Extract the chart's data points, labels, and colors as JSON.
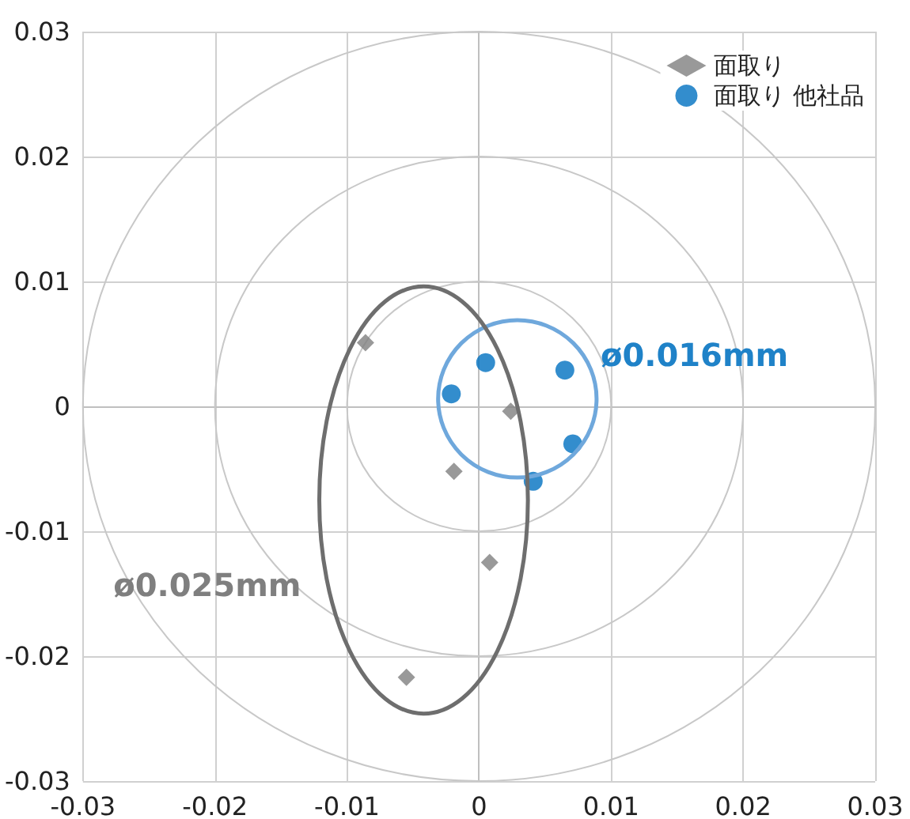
{
  "chart_data": {
    "type": "scatter",
    "series": [
      {
        "name": "面取り",
        "marker": "diamond",
        "color": "#808080",
        "x": [
          -0.0086,
          0.0024,
          -0.0019,
          0.0008,
          -0.0055
        ],
        "values": [
          0.0051,
          -0.0004,
          -0.0052,
          -0.0125,
          -0.0217
        ]
      },
      {
        "name": "面取り 他社品",
        "marker": "circle",
        "color": "#0070c0",
        "x": [
          0.0005,
          -0.0021,
          0.0065,
          0.0071,
          0.0041
        ],
        "values": [
          0.0035,
          0.001,
          0.0029,
          -0.003,
          -0.006
        ]
      }
    ],
    "annotations": [
      "ø0.016mm",
      "ø0.025mm"
    ],
    "xlim": [
      -0.03,
      0.03
    ],
    "xticks": [
      -0.03,
      -0.02,
      -0.01,
      0,
      0.01,
      0.02,
      0.03
    ],
    "ylim": [
      -0.03,
      0.03
    ],
    "yticks": [
      -0.03,
      -0.02,
      -0.01,
      0,
      0.01,
      0.02,
      0.03
    ],
    "grid": true,
    "legend": "top right"
  }
}
